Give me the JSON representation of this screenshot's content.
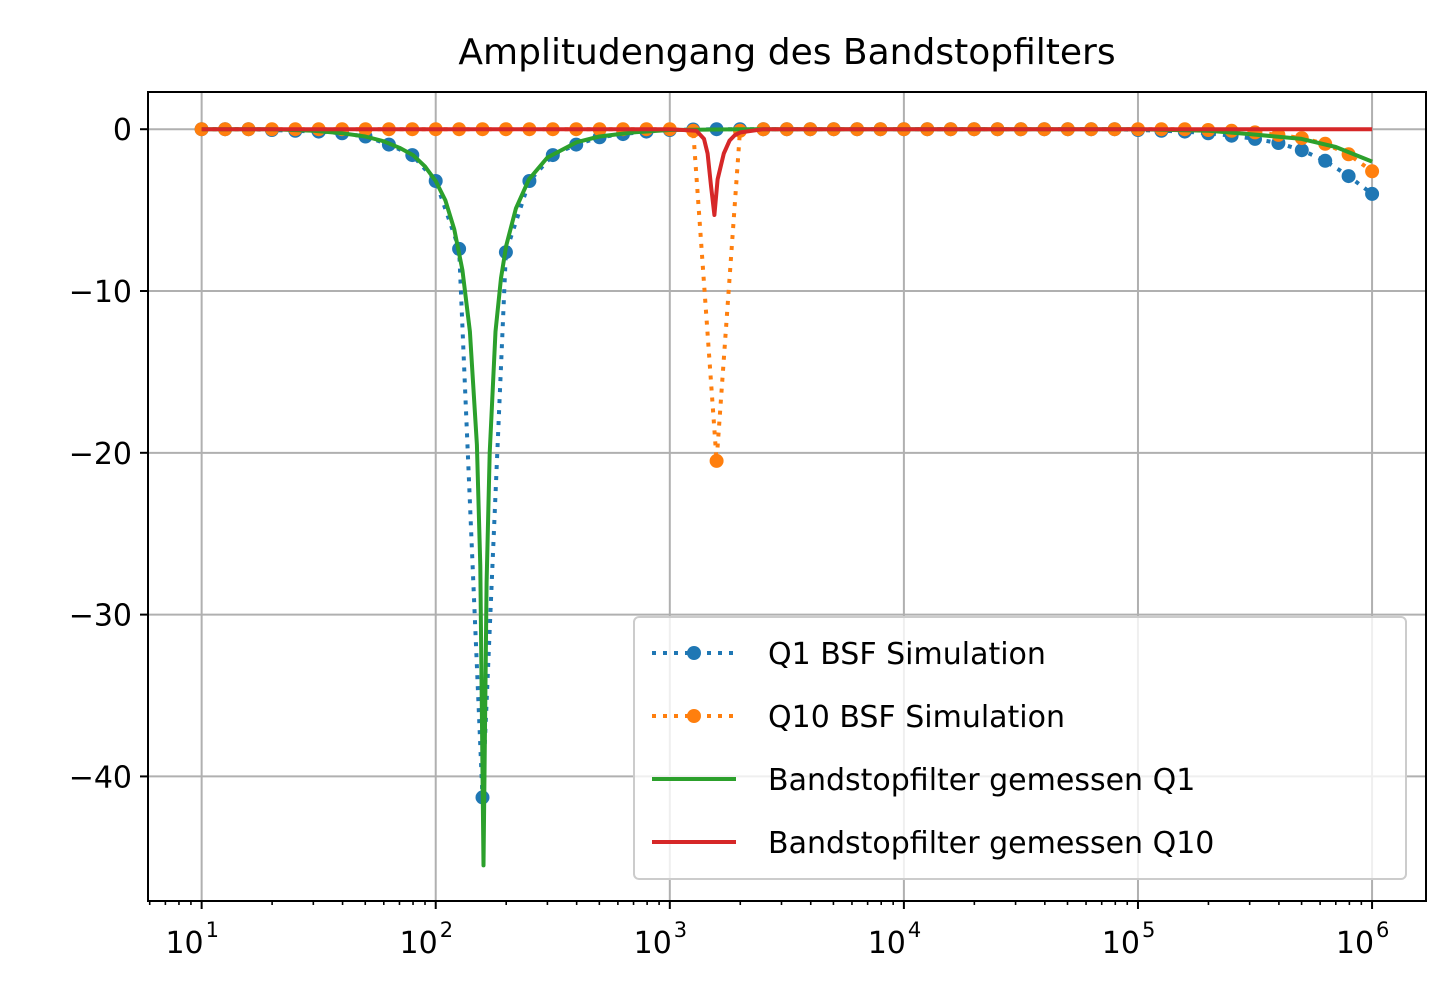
{
  "chart_data": {
    "type": "line",
    "title": "Amplitudengang des Bandstopfilters",
    "xlabel": "",
    "ylabel": "",
    "xscale": "log",
    "xlim": [
      5.9,
      1700000
    ],
    "ylim": [
      -47.7,
      2.3
    ],
    "grid": true,
    "legend_position": "lower-right",
    "x_ticks": [
      {
        "value": 10,
        "base": "10",
        "exp": "1"
      },
      {
        "value": 100,
        "base": "10",
        "exp": "2"
      },
      {
        "value": 1000,
        "base": "10",
        "exp": "3"
      },
      {
        "value": 10000,
        "base": "10",
        "exp": "4"
      },
      {
        "value": 100000,
        "base": "10",
        "exp": "5"
      },
      {
        "value": 1000000,
        "base": "10",
        "exp": "6"
      }
    ],
    "y_ticks": [
      {
        "value": 0,
        "label": "0"
      },
      {
        "value": -10,
        "label": "−10"
      },
      {
        "value": -20,
        "label": "−20"
      },
      {
        "value": -30,
        "label": "−30"
      },
      {
        "value": -40,
        "label": "−40"
      }
    ],
    "series": [
      {
        "name": "Q1 BSF Simulation",
        "color": "#1f77b4",
        "style": "dotted",
        "marker": "circle",
        "x": [
          10,
          12.59,
          15.85,
          19.95,
          25.12,
          31.62,
          39.81,
          50.12,
          63.1,
          79.43,
          100,
          125.9,
          158.5,
          199.5,
          251.2,
          316.2,
          398.1,
          501.2,
          631,
          794.3,
          1000,
          1259,
          1585,
          1995,
          2512,
          3162,
          3981,
          5012,
          6310,
          7943,
          10000,
          12590,
          15850,
          19950,
          25120,
          31620,
          39810,
          50120,
          63100,
          79430,
          100000,
          125900,
          158500,
          199500,
          251200,
          316200,
          398100,
          501200,
          631000,
          794300,
          1000000
        ],
        "y": [
          0,
          0,
          0,
          -0.05,
          -0.1,
          -0.15,
          -0.25,
          -0.45,
          -0.95,
          -1.6,
          -3.2,
          -7.4,
          -41.3,
          -7.6,
          -3.2,
          -1.6,
          -0.95,
          -0.5,
          -0.3,
          -0.15,
          -0.05,
          -0.02,
          0,
          0,
          0,
          0,
          0,
          0,
          0,
          0,
          0,
          0,
          0,
          0,
          0,
          0,
          0,
          0,
          0,
          0,
          -0.05,
          -0.1,
          -0.15,
          -0.25,
          -0.4,
          -0.6,
          -0.85,
          -1.3,
          -1.95,
          -2.9,
          -4.0
        ]
      },
      {
        "name": "Q10 BSF Simulation",
        "color": "#ff7f0e",
        "style": "dotted",
        "marker": "circle",
        "x": [
          10,
          12.59,
          15.85,
          19.95,
          25.12,
          31.62,
          39.81,
          50.12,
          63.1,
          79.43,
          100,
          125.9,
          158.5,
          199.5,
          251.2,
          316.2,
          398.1,
          501.2,
          631,
          794.3,
          1000,
          1259,
          1585,
          1995,
          2512,
          3162,
          3981,
          5012,
          6310,
          7943,
          10000,
          12590,
          15850,
          19950,
          25120,
          31620,
          39810,
          50120,
          63100,
          79430,
          100000,
          125900,
          158500,
          199500,
          251200,
          316200,
          398100,
          501200,
          631000,
          794300,
          1000000
        ],
        "y": [
          0,
          0,
          0,
          0,
          0,
          0,
          0,
          0,
          0,
          0,
          0,
          0,
          0,
          0,
          0,
          0,
          0,
          0,
          0,
          0,
          0,
          -0.1,
          -20.5,
          -0.1,
          0,
          0,
          0,
          0,
          0,
          0,
          0,
          0,
          0,
          0,
          0,
          0,
          0,
          0,
          0,
          0,
          0,
          0,
          0,
          -0.05,
          -0.1,
          -0.2,
          -0.35,
          -0.55,
          -0.9,
          -1.55,
          -2.6
        ]
      },
      {
        "name": "Bandstopfilter gemessen Q1",
        "color": "#2ca02c",
        "style": "solid",
        "marker": "none",
        "x": [
          10,
          20,
          30,
          40,
          50,
          60,
          70,
          80,
          90,
          100,
          110,
          120,
          130,
          140,
          150,
          155,
          160,
          165,
          170,
          180,
          190,
          200,
          220,
          250,
          300,
          400,
          500,
          700,
          1000,
          2000,
          5000,
          10000,
          30000,
          100000,
          200000,
          300000,
          500000,
          700000,
          1000000
        ],
        "y": [
          0,
          0,
          -0.1,
          -0.25,
          -0.45,
          -0.75,
          -1.15,
          -1.6,
          -2.3,
          -3.2,
          -4.4,
          -6.2,
          -8.7,
          -12.5,
          -19.5,
          -27,
          -45.5,
          -28,
          -20,
          -12.5,
          -9.2,
          -7.2,
          -4.9,
          -3.1,
          -1.75,
          -0.8,
          -0.45,
          -0.2,
          -0.05,
          0,
          0,
          0,
          0,
          0,
          -0.1,
          -0.3,
          -0.6,
          -1.1,
          -2.0
        ]
      },
      {
        "name": "Bandstopfilter gemessen Q10",
        "color": "#d62728",
        "style": "solid",
        "marker": "none",
        "x": [
          10,
          100,
          1000,
          1300,
          1400,
          1450,
          1500,
          1550,
          1600,
          1700,
          1800,
          1900,
          2000,
          2500,
          10000,
          100000,
          1000000
        ],
        "y": [
          0,
          0,
          0,
          -0.1,
          -0.6,
          -1.5,
          -3.5,
          -5.3,
          -3.1,
          -1.5,
          -0.7,
          -0.35,
          -0.2,
          0,
          0,
          0,
          0
        ]
      }
    ]
  }
}
